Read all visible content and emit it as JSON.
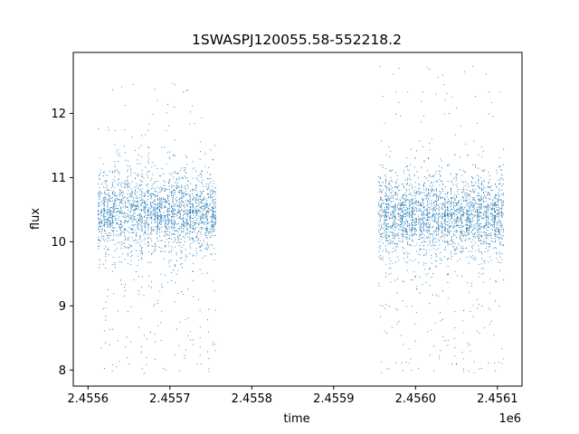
{
  "chart_data": {
    "type": "scatter",
    "title": "1SWASPJ120055.58-552218.2",
    "xlabel": "time",
    "ylabel": "flux",
    "x_offset_label": "1e6",
    "xlim": [
      2455582,
      2456130
    ],
    "ylim": [
      7.75,
      12.95
    ],
    "x_ticks": [
      2455600,
      2455700,
      2455800,
      2455900,
      2456000,
      2456100
    ],
    "x_tick_labels": [
      "2.4556",
      "2.4557",
      "2.4558",
      "2.4559",
      "2.4560",
      "2.4561"
    ],
    "y_ticks": [
      8,
      9,
      10,
      11,
      12
    ],
    "y_tick_labels": [
      "8",
      "9",
      "10",
      "11",
      "12"
    ],
    "grid": false,
    "marker_color": "#1f77b4",
    "series": [
      {
        "values_summary": "dense clusters of photometric measurements around flux 10.4 with scatter ~8.0 to 12.7",
        "segments": [
          {
            "x_start": 2455612,
            "x_end": 2455757,
            "center": 10.45,
            "spread": 0.3,
            "min": 7.95,
            "max": 12.5
          },
          {
            "x_start": 2455955,
            "x_end": 2456108,
            "center": 10.4,
            "spread": 0.3,
            "min": 7.95,
            "max": 12.75
          }
        ],
        "points": [
          [
            2455613,
            10.6
          ],
          [
            2455615,
            11.3
          ],
          [
            2455618,
            10.2
          ],
          [
            2455620,
            10.5
          ],
          [
            2455625,
            9.8
          ],
          [
            2455630,
            10.4
          ],
          [
            2455636,
            10.9
          ],
          [
            2455640,
            9.4
          ],
          [
            2455645,
            10.7
          ],
          [
            2455650,
            8.1
          ],
          [
            2455655,
            12.45
          ],
          [
            2455660,
            10.3
          ],
          [
            2455665,
            8.8
          ],
          [
            2455670,
            10.6
          ],
          [
            2455675,
            11.1
          ],
          [
            2455680,
            9.0
          ],
          [
            2455685,
            12.2
          ],
          [
            2455690,
            10.4
          ],
          [
            2455695,
            8.0
          ],
          [
            2455700,
            11.4
          ],
          [
            2455705,
            12.1
          ],
          [
            2455710,
            10.2
          ],
          [
            2455715,
            9.6
          ],
          [
            2455720,
            12.35
          ],
          [
            2455725,
            8.6
          ],
          [
            2455730,
            10.8
          ],
          [
            2455735,
            9.1
          ],
          [
            2455740,
            10.3
          ],
          [
            2455745,
            10.9
          ],
          [
            2455750,
            9.8
          ],
          [
            2455755,
            11.5
          ],
          [
            2455956,
            10.4
          ],
          [
            2455960,
            9.0
          ],
          [
            2455965,
            10.8
          ],
          [
            2455970,
            11.0
          ],
          [
            2455975,
            9.4
          ],
          [
            2455980,
            12.7
          ],
          [
            2455985,
            8.4
          ],
          [
            2455990,
            10.5
          ],
          [
            2455995,
            8.0
          ],
          [
            2456000,
            11.3
          ],
          [
            2456005,
            9.2
          ],
          [
            2456010,
            10.2
          ],
          [
            2456015,
            8.6
          ],
          [
            2456020,
            11.6
          ],
          [
            2456025,
            12.3
          ],
          [
            2456030,
            8.9
          ],
          [
            2456035,
            12.45
          ],
          [
            2456040,
            9.5
          ],
          [
            2456045,
            12.25
          ],
          [
            2456050,
            8.1
          ],
          [
            2456055,
            11.8
          ],
          [
            2456060,
            12.65
          ],
          [
            2456065,
            7.98
          ],
          [
            2456070,
            10.6
          ],
          [
            2456075,
            9.1
          ],
          [
            2456080,
            11.0
          ],
          [
            2456085,
            9.7
          ],
          [
            2456090,
            10.3
          ],
          [
            2456095,
            9.9
          ],
          [
            2456100,
            10.5
          ],
          [
            2456106,
            10.6
          ]
        ]
      }
    ]
  }
}
